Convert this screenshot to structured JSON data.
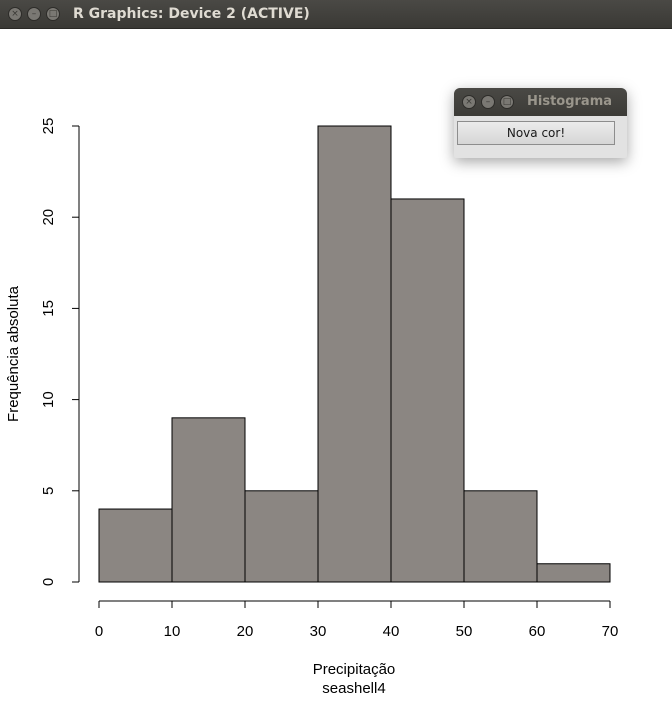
{
  "window": {
    "title": "R Graphics: Device 2 (ACTIVE)",
    "close_glyph": "×",
    "min_glyph": "–",
    "max_glyph": "□"
  },
  "popup": {
    "title": "Histograma",
    "button_label": "Nova cor!"
  },
  "colors": {
    "bar_fill": "#8b8682",
    "bar_stroke": "#000000",
    "titlebar": "#3c3b37"
  },
  "chart_data": {
    "type": "bar",
    "bins": [
      [
        0,
        10
      ],
      [
        10,
        20
      ],
      [
        20,
        30
      ],
      [
        30,
        40
      ],
      [
        40,
        50
      ],
      [
        50,
        60
      ],
      [
        60,
        70
      ]
    ],
    "values": [
      4,
      9,
      5,
      25,
      21,
      5,
      1
    ],
    "xlabel": "Precipitação",
    "subtitle": "seashell4",
    "ylabel": "Frequência absoluta",
    "x_ticks": [
      0,
      10,
      20,
      30,
      40,
      50,
      60,
      70
    ],
    "y_ticks": [
      0,
      5,
      10,
      15,
      20,
      25
    ],
    "xlim": [
      0,
      70
    ],
    "ylim": [
      0,
      25
    ],
    "grid": false,
    "legend": "none"
  }
}
